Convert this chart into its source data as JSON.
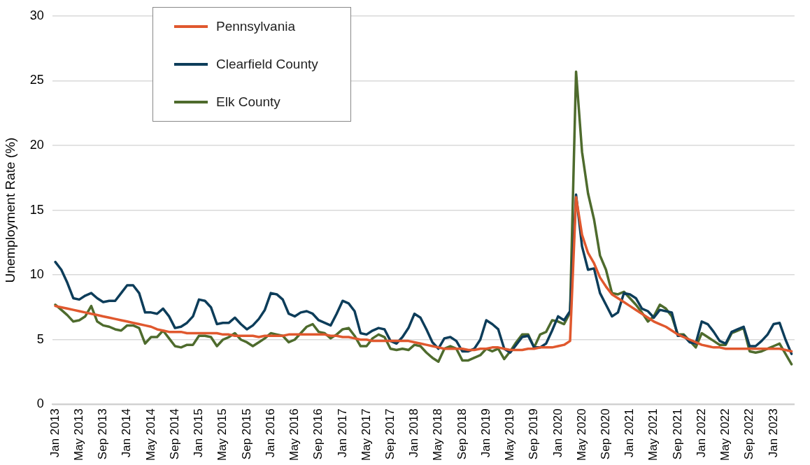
{
  "chart_data": {
    "type": "line",
    "ylabel": "Unemployment Rate (%)",
    "categories": [
      "Jan 2013",
      null,
      null,
      null,
      "May 2013",
      null,
      null,
      null,
      "Sep 2013",
      null,
      null,
      null,
      "Jan 2014",
      null,
      null,
      null,
      "May 2014",
      null,
      null,
      null,
      "Sep 2014",
      null,
      null,
      null,
      "Jan 2015",
      null,
      null,
      null,
      "May 2015",
      null,
      null,
      null,
      "Sep 2015",
      null,
      null,
      null,
      "Jan 2016",
      null,
      null,
      null,
      "May 2016",
      null,
      null,
      null,
      "Sep 2016",
      null,
      null,
      null,
      "Jan 2017",
      null,
      null,
      null,
      "May 2017",
      null,
      null,
      null,
      "Sep 2017",
      null,
      null,
      null,
      "Jan 2018",
      null,
      null,
      null,
      "May 2018",
      null,
      null,
      null,
      "Sep 2018",
      null,
      null,
      null,
      "Jan 2019",
      null,
      null,
      null,
      "May 2019",
      null,
      null,
      null,
      "Sep 2019",
      null,
      null,
      null,
      "Jan 2020",
      null,
      null,
      null,
      "May 2020",
      null,
      null,
      null,
      "Sep 2020",
      null,
      null,
      null,
      "Jan 2021",
      null,
      null,
      null,
      "May 2021",
      null,
      null,
      null,
      "Sep 2021",
      null,
      null,
      null,
      "Jan 2022",
      null,
      null,
      null,
      "May 2022",
      null,
      null,
      null,
      "Sep 2022",
      null,
      null,
      null,
      "Jan 2023",
      null,
      null,
      null
    ],
    "series": [
      {
        "name": "Pennsylvania",
        "color": "#e0582e",
        "values": [
          7.6,
          7.5,
          7.4,
          7.3,
          7.2,
          7.1,
          7.0,
          6.9,
          6.8,
          6.7,
          6.6,
          6.5,
          6.4,
          6.3,
          6.2,
          6.1,
          6.0,
          5.8,
          5.7,
          5.6,
          5.6,
          5.6,
          5.5,
          5.5,
          5.5,
          5.5,
          5.5,
          5.5,
          5.4,
          5.4,
          5.3,
          5.3,
          5.3,
          5.3,
          5.2,
          5.3,
          5.3,
          5.3,
          5.3,
          5.4,
          5.4,
          5.4,
          5.4,
          5.4,
          5.4,
          5.4,
          5.3,
          5.3,
          5.2,
          5.2,
          5.1,
          5.0,
          5.0,
          4.9,
          4.9,
          4.9,
          4.9,
          4.9,
          4.9,
          4.9,
          4.8,
          4.7,
          4.6,
          4.5,
          4.4,
          4.3,
          4.3,
          4.3,
          4.3,
          4.2,
          4.2,
          4.3,
          4.3,
          4.4,
          4.4,
          4.3,
          4.2,
          4.2,
          4.2,
          4.3,
          4.3,
          4.4,
          4.4,
          4.4,
          4.5,
          4.6,
          4.9,
          16.0,
          13.1,
          11.7,
          10.9,
          9.8,
          9.1,
          8.5,
          8.2,
          7.9,
          7.6,
          7.3,
          7.0,
          6.7,
          6.4,
          6.2,
          6.0,
          5.7,
          5.4,
          5.2,
          5.0,
          4.8,
          4.6,
          4.5,
          4.4,
          4.4,
          4.3,
          4.3,
          4.3,
          4.3,
          4.3,
          4.3,
          4.3,
          4.3,
          4.3,
          4.3,
          4.2,
          4.1
        ]
      },
      {
        "name": "Clearfield County",
        "color": "#0d3d5a",
        "values": [
          11.0,
          10.4,
          9.4,
          8.2,
          8.1,
          8.4,
          8.6,
          8.2,
          7.9,
          8.0,
          8.0,
          8.6,
          9.2,
          9.2,
          8.6,
          7.1,
          7.1,
          7.0,
          7.4,
          6.8,
          5.9,
          6.0,
          6.3,
          6.8,
          8.1,
          8.0,
          7.5,
          6.2,
          6.3,
          6.3,
          6.7,
          6.2,
          5.8,
          6.1,
          6.6,
          7.3,
          8.6,
          8.5,
          8.1,
          7.0,
          6.8,
          7.1,
          7.2,
          7.0,
          6.5,
          6.3,
          6.1,
          7.0,
          8.0,
          7.8,
          7.2,
          5.5,
          5.4,
          5.7,
          5.9,
          5.8,
          4.9,
          4.7,
          5.2,
          5.9,
          7.0,
          6.7,
          5.8,
          4.8,
          4.3,
          5.1,
          5.2,
          4.9,
          4.1,
          4.1,
          4.3,
          5.0,
          6.5,
          6.2,
          5.8,
          4.3,
          4.0,
          4.6,
          5.2,
          5.3,
          4.4,
          4.4,
          4.7,
          5.7,
          6.8,
          6.5,
          7.2,
          16.2,
          12.2,
          10.4,
          10.5,
          8.6,
          7.7,
          6.8,
          7.1,
          8.6,
          8.5,
          8.2,
          7.4,
          7.2,
          6.7,
          7.3,
          7.2,
          7.1,
          5.3,
          5.3,
          4.8,
          4.7,
          6.4,
          6.2,
          5.6,
          4.9,
          4.7,
          5.6,
          5.8,
          6.0,
          4.5,
          4.5,
          4.9,
          5.4,
          6.2,
          6.3,
          5.0,
          3.9
        ]
      },
      {
        "name": "Elk County",
        "color": "#4e6b2d",
        "values": [
          7.7,
          7.3,
          6.9,
          6.4,
          6.5,
          6.8,
          7.6,
          6.4,
          6.1,
          6.0,
          5.8,
          5.7,
          6.1,
          6.1,
          5.9,
          4.7,
          5.2,
          5.2,
          5.7,
          5.1,
          4.5,
          4.4,
          4.6,
          4.6,
          5.3,
          5.3,
          5.2,
          4.5,
          5.0,
          5.2,
          5.5,
          5.0,
          4.8,
          4.5,
          4.8,
          5.1,
          5.5,
          5.4,
          5.3,
          4.8,
          5.0,
          5.5,
          6.0,
          6.2,
          5.6,
          5.5,
          5.1,
          5.4,
          5.8,
          5.9,
          5.3,
          4.5,
          4.5,
          5.1,
          5.4,
          5.2,
          4.3,
          4.2,
          4.3,
          4.2,
          4.6,
          4.5,
          4.0,
          3.6,
          3.3,
          4.3,
          4.5,
          4.3,
          3.4,
          3.4,
          3.6,
          3.8,
          4.3,
          4.1,
          4.3,
          3.5,
          4.1,
          4.8,
          5.4,
          5.4,
          4.4,
          5.4,
          5.6,
          6.5,
          6.4,
          6.2,
          7.1,
          25.7,
          19.5,
          16.3,
          14.3,
          11.5,
          10.4,
          8.6,
          8.5,
          8.7,
          8.2,
          7.7,
          7.1,
          6.4,
          6.8,
          7.7,
          7.4,
          6.8,
          5.4,
          5.4,
          4.9,
          4.4,
          5.5,
          5.2,
          4.9,
          4.6,
          4.6,
          5.5,
          5.7,
          5.9,
          4.1,
          4.0,
          4.1,
          4.3,
          4.5,
          4.7,
          3.9,
          3.1
        ]
      }
    ],
    "ylim": [
      0,
      30
    ],
    "yticks": [
      0,
      5,
      10,
      15,
      20,
      25,
      30
    ],
    "grid": "y",
    "legend": "top left",
    "marker": "none",
    "line_style": "solid"
  }
}
